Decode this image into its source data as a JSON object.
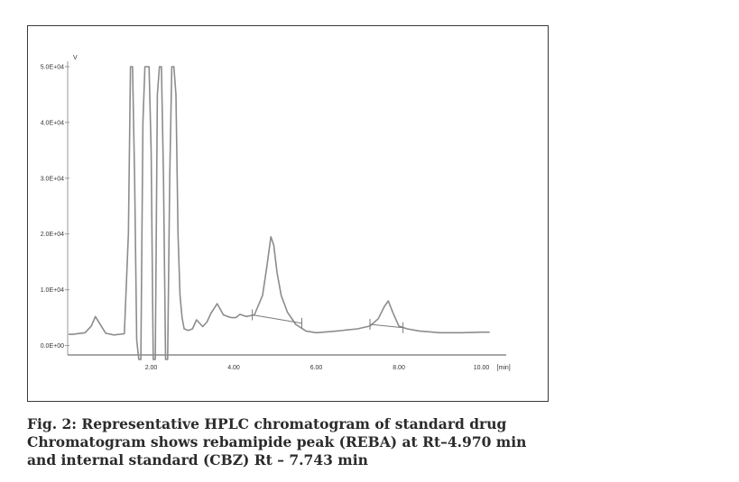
{
  "chart_data": {
    "type": "line",
    "ylabel": "V",
    "xlabel": "[min]",
    "xlim": [
      0.0,
      10.6
    ],
    "ylim": [
      -2500,
      50000
    ],
    "x_ticks": [
      {
        "value": 2.0,
        "label": "2.00"
      },
      {
        "value": 4.0,
        "label": "4.00"
      },
      {
        "value": 6.0,
        "label": "6.00"
      },
      {
        "value": 8.0,
        "label": "8.00"
      },
      {
        "value": 10.0,
        "label": "10.00"
      }
    ],
    "y_ticks": [
      {
        "value": 0,
        "label": "0.0E+00"
      },
      {
        "value": 10000,
        "label": "1.0E+04"
      },
      {
        "value": 20000,
        "label": "2.0E+04"
      },
      {
        "value": 30000,
        "label": "3.0E+04"
      },
      {
        "value": 40000,
        "label": "4.0E+04"
      },
      {
        "value": 50000,
        "label": "5.0E+04"
      }
    ],
    "grid": false,
    "series": [
      {
        "x": [
          0.0,
          0.1,
          0.4,
          0.55,
          0.65,
          0.75,
          0.9,
          1.1,
          1.35,
          1.45,
          1.5,
          1.55,
          1.6,
          1.65,
          1.7,
          1.75,
          1.8,
          1.85,
          1.88,
          1.95,
          2.0,
          2.05,
          2.1,
          2.15,
          2.2,
          2.25,
          2.3,
          2.35,
          2.4,
          2.45,
          2.5,
          2.55,
          2.6,
          2.65,
          2.7,
          2.75,
          2.8,
          2.9,
          3.0,
          3.1,
          3.25,
          3.35,
          3.45,
          3.6,
          3.75,
          3.85,
          3.95,
          4.05,
          4.15,
          4.3,
          4.5,
          4.7,
          4.8,
          4.9,
          4.97,
          5.05,
          5.15,
          5.3,
          5.5,
          5.75,
          6.0,
          6.5,
          7.0,
          7.3,
          7.5,
          7.65,
          7.743,
          7.85,
          8.0,
          8.2,
          8.5,
          9.0,
          9.5,
          10.0,
          10.2
        ],
        "y": [
          2000,
          2000,
          2300,
          3500,
          5200,
          4000,
          2200,
          1900,
          2100,
          20000,
          50000,
          50000,
          30000,
          1000,
          -2500,
          -2500,
          40000,
          50000,
          50000,
          50000,
          35000,
          -2500,
          -2500,
          45000,
          50000,
          50000,
          30000,
          -2500,
          -2500,
          30000,
          50000,
          50000,
          45000,
          20000,
          9000,
          5000,
          3000,
          2700,
          3000,
          4600,
          3400,
          4200,
          5800,
          7500,
          5500,
          5200,
          5000,
          5000,
          5600,
          5200,
          5500,
          9000,
          14000,
          19500,
          18000,
          13000,
          9000,
          6000,
          3800,
          2600,
          2300,
          2600,
          3000,
          3500,
          4800,
          7000,
          8000,
          6000,
          3500,
          3000,
          2600,
          2300,
          2300,
          2400,
          2400
        ]
      }
    ],
    "baselines": [
      {
        "x": [
          4.45,
          5.65
        ],
        "y": [
          5500,
          4000
        ]
      },
      {
        "x": [
          7.3,
          8.1
        ],
        "y": [
          3800,
          3200
        ]
      }
    ],
    "peak_markers": [
      4.45,
      5.65,
      7.3,
      8.1
    ]
  },
  "caption": {
    "line1": "Fig. 2: Representative HPLC chromatogram of standard drug",
    "line2": "Chromatogram shows rebamipide peak (REBA) at Rt–4.970 min",
    "line3": "and internal standard (CBZ) Rt – 7.743 min"
  }
}
